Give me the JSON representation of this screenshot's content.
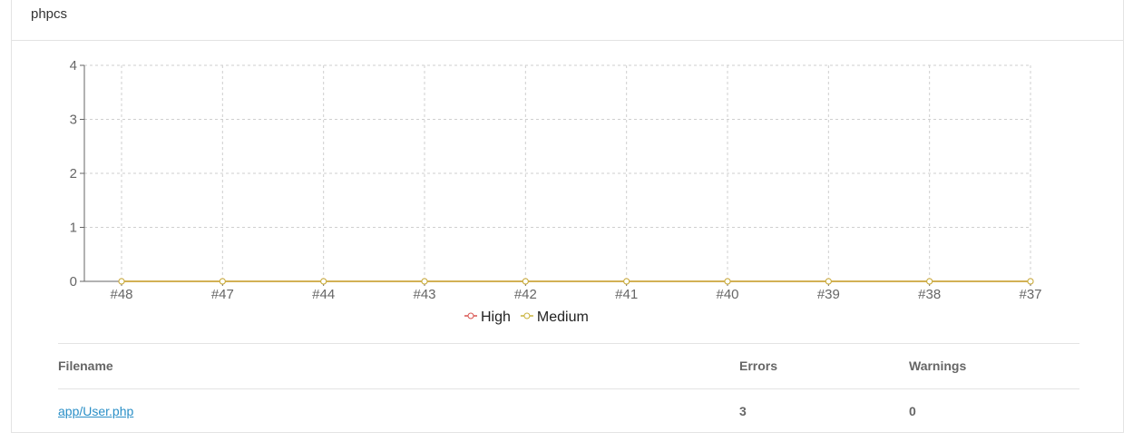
{
  "panel": {
    "title": "phpcs"
  },
  "chart_data": {
    "type": "line",
    "categories": [
      "#48",
      "#47",
      "#44",
      "#43",
      "#42",
      "#41",
      "#40",
      "#39",
      "#38",
      "#37"
    ],
    "series": [
      {
        "name": "High",
        "color": "#d9534f",
        "values": [
          0,
          0,
          0,
          0,
          0,
          0,
          0,
          0,
          0,
          0
        ]
      },
      {
        "name": "Medium",
        "color": "#c9b23a",
        "values": [
          0,
          0,
          0,
          0,
          0,
          0,
          0,
          0,
          0,
          0
        ]
      }
    ],
    "yticks": [
      0,
      1,
      2,
      3,
      4
    ],
    "ylim": [
      0,
      4
    ],
    "grid": true,
    "legend_position": "bottom-center"
  },
  "table": {
    "headers": {
      "filename": "Filename",
      "errors": "Errors",
      "warnings": "Warnings"
    },
    "rows": [
      {
        "filename": "app/User.php",
        "errors": "3",
        "warnings": "0"
      }
    ]
  }
}
